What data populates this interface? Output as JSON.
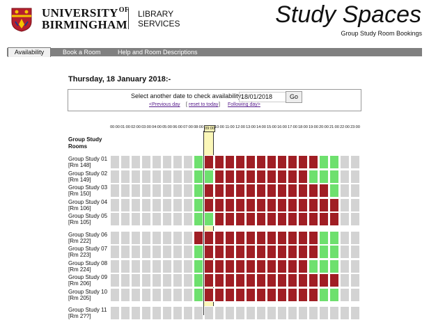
{
  "header": {
    "university_line1": "UNIVERSITY",
    "university_of": "OF",
    "university_line2": "BIRMINGHAM",
    "library_line1": "LIBRARY",
    "library_line2": "SERVICES",
    "title": "Study Spaces",
    "subtitle": "Group Study Room Bookings"
  },
  "nav": {
    "tabs": [
      {
        "label": "Availability",
        "active": true
      },
      {
        "label": "Book a Room",
        "active": false
      },
      {
        "label": "Help and Room Descriptions",
        "active": false
      }
    ]
  },
  "date_heading": "Thursday, 18 January 2018:-",
  "date_picker": {
    "label": "Select another date to check availability:",
    "value": "18/01/2018",
    "go_label": "Go",
    "prev_label": "<Previous day",
    "reset_label": "reset to today",
    "next_label": "Following day>"
  },
  "grid": {
    "rooms_heading": "Group Study Rooms",
    "hours": [
      "00:00",
      "01:00",
      "02:00",
      "03:00",
      "04:00",
      "05:00",
      "06:00",
      "07:00",
      "08:00",
      "09:00",
      "10:00",
      "11:00",
      "12:00",
      "13:00",
      "14:00",
      "15:00",
      "16:00",
      "17:00",
      "18:00",
      "19:00",
      "20:00",
      "21:00",
      "22:00",
      "23:00"
    ],
    "current_hour": "09:00",
    "colors": {
      "unavailable": "#d3d3d3",
      "available": "#6ee06e",
      "booked": "#a01e24"
    },
    "rooms": [
      {
        "name": "Group Study 01",
        "room": "[Rm 148]",
        "slots": "uuuuuuuuaBBBBBBBBBBBaauu"
      },
      {
        "name": "Group Study 02",
        "room": "[Rm 149]",
        "slots": "uuuuuuuuaaBBBBBBBBBaaauu"
      },
      {
        "name": "Group Study 03",
        "room": "[Rm 150]",
        "slots": "uuuuuuuuaBBBBBBBBBBBBauu"
      },
      {
        "name": "Group Study 04",
        "room": "[Rm 106]",
        "slots": "uuuuuuuuaBBBBBBBBBBBBBuu"
      },
      {
        "name": "Group Study 05",
        "room": "[Rm 105]",
        "slots": "uuuuuuuuaaBBBBBBBBBBBBuu"
      },
      {
        "name": "Group Study 06",
        "room": "[Rm 222]",
        "slots": "uuuuuuuuBBBBBBBBBBBBaauu"
      },
      {
        "name": "Group Study 07",
        "room": "[Rm 223]",
        "slots": "uuuuuuuuaBBBBBBBBBBBaauu"
      },
      {
        "name": "Group Study 08",
        "room": "[Rm 224]",
        "slots": "uuuuuuuuaBBBBBBBBBBaaauu"
      },
      {
        "name": "Group Study 09",
        "room": "[Rm 206]",
        "slots": "uuuuuuuuaBBBBBBBBBBBBBuu"
      },
      {
        "name": "Group Study 10",
        "room": "[Rm 205]",
        "slots": "uuuuuuuuaBBBBBBBBBBBaauu"
      },
      {
        "name": "Group Study 11",
        "room": "[Rm 2??]",
        "slots": "uuuuuuuuuuuuuuuuuuuuuuuu"
      }
    ]
  }
}
